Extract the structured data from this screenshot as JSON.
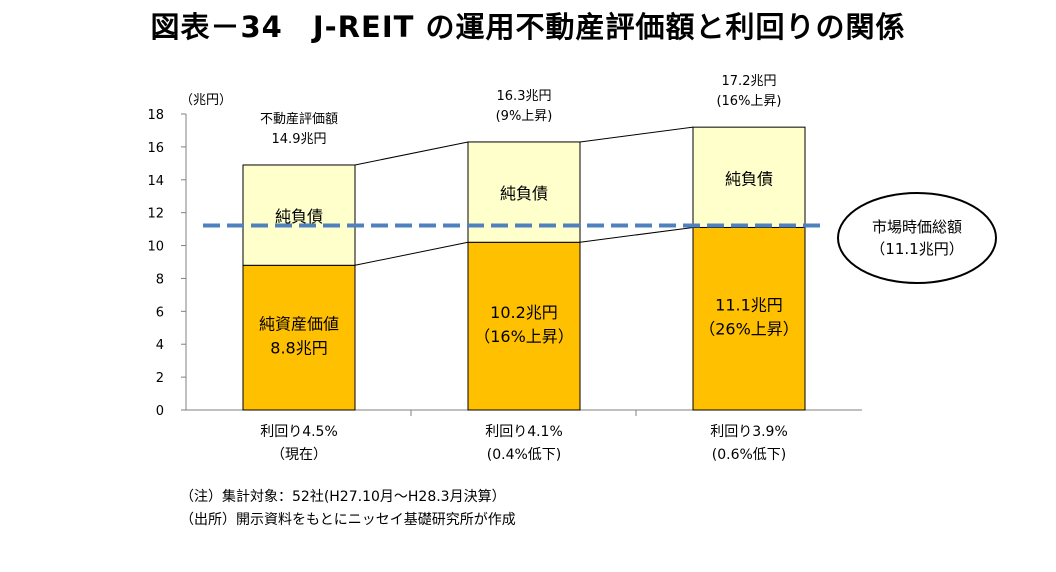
{
  "title": "図表－34　J-REIT の運用不動産評価額と利回りの関係",
  "chart_data": {
    "type": "bar",
    "stacked": true,
    "unit_label": "（兆円）",
    "ylim": [
      0,
      18
    ],
    "yticks": [
      "0",
      "2",
      "4",
      "6",
      "8",
      "10",
      "12",
      "14",
      "16",
      "18"
    ],
    "grid": false,
    "series": [
      {
        "name": "純資産価値",
        "values": [
          8.8,
          10.2,
          11.1
        ],
        "color": "#FFC000"
      },
      {
        "name": "純負債",
        "values": [
          6.1,
          6.1,
          6.1
        ],
        "color": "#FFFFCC"
      }
    ],
    "totals": [
      14.9,
      16.3,
      17.2
    ],
    "categories": [
      {
        "line1": "利回り4.5%",
        "line2": "（現在）"
      },
      {
        "line1": "利回り4.1%",
        "line2": "(0.4%低下)"
      },
      {
        "line1": "利回り3.9%",
        "line2": "(0.6%低下)"
      }
    ],
    "debt_labels": [
      "純負債",
      "純負債",
      "純負債"
    ],
    "equity_labels": [
      {
        "line1": "純資産価値",
        "line2": "8.8兆円"
      },
      {
        "line1": "10.2兆円",
        "line2": "（16%上昇）"
      },
      {
        "line1": "11.1兆円",
        "line2": "（26%上昇）"
      }
    ],
    "top_labels": [
      {
        "line1": "不動産評価額",
        "line2": "14.9兆円"
      },
      {
        "line1": "16.3兆円",
        "line2": "(9%上昇)"
      },
      {
        "line1": "17.2兆円",
        "line2": "(16%上昇)"
      }
    ],
    "reference_line": {
      "value": 11.1,
      "color": "#4F81BD",
      "label_line1": "市場時価総額",
      "label_line2": "（11.1兆円）"
    }
  },
  "notes": [
    "（注）集計対象：52社(H27.10月～H28.3月決算）",
    "（出所）開示資料をもとにニッセイ基礎研究所が作成"
  ]
}
